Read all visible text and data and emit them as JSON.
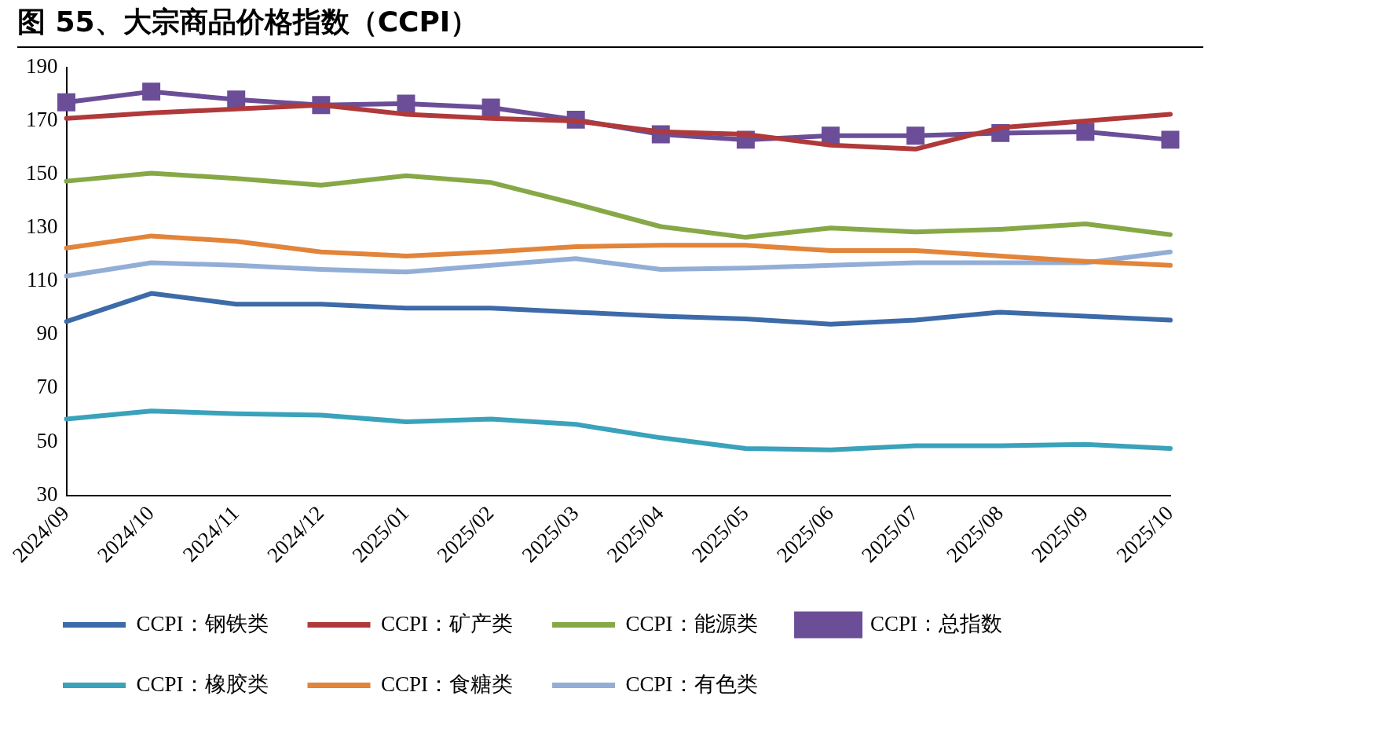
{
  "chart_data": {
    "type": "line",
    "title": "图 55、大宗商品价格指数（CCPI）",
    "categories": [
      "2024/09",
      "2024/10",
      "2024/11",
      "2024/12",
      "2025/01",
      "2025/02",
      "2025/03",
      "2025/04",
      "2025/05",
      "2025/06",
      "2025/07",
      "2025/08",
      "2025/09",
      "2025/10"
    ],
    "series": [
      {
        "name": "CCPI：钢铁类",
        "color": "#3d6aa8",
        "marker": "none",
        "values": [
          95,
          105.5,
          101.5,
          101.5,
          100,
          100,
          98.5,
          97,
          96,
          94,
          95.5,
          98.5,
          97,
          95.5
        ]
      },
      {
        "name": "CCPI：矿产类",
        "color": "#b0393a",
        "marker": "none",
        "values": [
          171,
          173,
          174.5,
          176,
          172.5,
          171,
          170,
          166,
          165,
          161,
          159.5,
          167.5,
          170,
          172.5
        ]
      },
      {
        "name": "CCPI：能源类",
        "color": "#86a847",
        "marker": "none",
        "values": [
          147.5,
          150.5,
          148.5,
          146,
          149.5,
          147,
          139,
          130.5,
          126.5,
          130,
          128.5,
          129.5,
          131.5,
          127.5
        ]
      },
      {
        "name": "CCPI：总指数",
        "color": "#6b4e97",
        "marker": "square",
        "values": [
          177,
          181,
          178,
          176,
          176.5,
          175,
          170.5,
          165,
          163,
          164.5,
          164.5,
          165.5,
          166,
          163
        ]
      },
      {
        "name": "CCPI：橡胶类",
        "color": "#3aa2bb",
        "marker": "none",
        "values": [
          58.5,
          61.5,
          60.5,
          60,
          57.5,
          58.5,
          56.5,
          51.5,
          47.5,
          47,
          48.5,
          48.5,
          49,
          47.5
        ]
      },
      {
        "name": "CCPI：食糖类",
        "color": "#e2843a",
        "marker": "none",
        "values": [
          122.5,
          127,
          125,
          121,
          119.5,
          121,
          123,
          123.5,
          123.5,
          121.5,
          121.5,
          119.5,
          117.5,
          116
        ]
      },
      {
        "name": "CCPI：有色类",
        "color": "#93aed6",
        "marker": "none",
        "values": [
          112,
          117,
          116,
          114.5,
          113.5,
          116,
          118.5,
          114.5,
          115,
          116,
          117,
          117,
          117,
          121
        ]
      }
    ],
    "ylim": [
      30,
      190
    ],
    "yticks": [
      30,
      50,
      70,
      90,
      110,
      130,
      150,
      170,
      190
    ],
    "grid": false,
    "legend": "bottom",
    "line_style": "solid"
  }
}
